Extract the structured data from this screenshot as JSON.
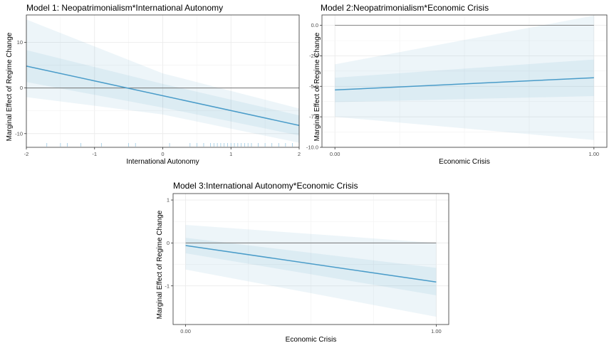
{
  "chart_data": [
    {
      "type": "line",
      "title": "Model 1: Neopatrimonialism*International Autonomy",
      "xlabel": "International Autonomy",
      "ylabel": "Marginal Effect of Regime Change",
      "xlim": [
        -2,
        2
      ],
      "ylim": [
        -13,
        16
      ],
      "x_ticks": [
        -2,
        -1,
        0,
        1,
        2
      ],
      "x_tick_labels": [
        "-2",
        "-1",
        "0",
        "1",
        "2"
      ],
      "y_ticks": [
        10,
        0,
        -10
      ],
      "y_tick_labels": [
        "10",
        "0",
        "-10"
      ],
      "grid": true,
      "reference_line": 0,
      "series": [
        {
          "x": [
            -2,
            0,
            2
          ],
          "y": [
            4.8,
            -1.7,
            -8.2
          ],
          "ci_inner_upper": [
            8.3,
            0.9,
            -6.0
          ],
          "ci_inner_lower": [
            1.3,
            -4.3,
            -10.4
          ],
          "ci_outer_upper": [
            15.0,
            3.2,
            -4.5
          ],
          "ci_outer_lower": [
            -2.0,
            -5.8,
            -12.0
          ]
        }
      ],
      "rug": [
        -1.7,
        -1.5,
        -1.4,
        -1.2,
        -0.9,
        -0.5,
        -0.4,
        0.1,
        0.4,
        0.5,
        0.6,
        0.7,
        0.75,
        0.8,
        0.85,
        0.9,
        0.95,
        1.0,
        1.05,
        1.1,
        1.15,
        1.2,
        1.25,
        1.3,
        1.4,
        1.5,
        1.6,
        1.7,
        1.8,
        1.9
      ],
      "color": "#4a9cc9"
    },
    {
      "type": "line",
      "title": "Model 2:Neopatrimonialism*Economic Crisis",
      "xlabel": "Economic Crisis",
      "ylabel": "Marginal Effect of Regime Change",
      "xlim": [
        -0.05,
        1.05
      ],
      "ylim": [
        -10,
        0.85
      ],
      "x_ticks": [
        0,
        1
      ],
      "x_tick_labels": [
        "0.00",
        "1.00"
      ],
      "y_ticks": [
        0,
        -2.5,
        -5,
        -7.5,
        -10
      ],
      "y_tick_labels": [
        "0.0",
        "-2.5",
        "-5.0",
        "-7.5",
        "-10.0"
      ],
      "grid": true,
      "reference_line": 0,
      "series": [
        {
          "x": [
            0,
            1
          ],
          "y": [
            -5.3,
            -4.3
          ],
          "ci_inner_upper": [
            -4.3,
            -2.8
          ],
          "ci_inner_lower": [
            -6.3,
            -5.8
          ],
          "ci_outer_upper": [
            -3.2,
            0.8
          ],
          "ci_outer_lower": [
            -7.5,
            -9.4
          ]
        }
      ],
      "color": "#4a9cc9"
    },
    {
      "type": "line",
      "title": "Model 3:International Autonomy*Economic Crisis",
      "xlabel": "Economic Crisis",
      "ylabel": "Marginal Effect of Regime Change",
      "xlim": [
        -0.05,
        1.05
      ],
      "ylim": [
        -1.9,
        1.15
      ],
      "x_ticks": [
        0,
        1
      ],
      "x_tick_labels": [
        "0.00",
        "1.00"
      ],
      "y_ticks": [
        1,
        0,
        -1
      ],
      "y_tick_labels": [
        "1",
        "0",
        "-1"
      ],
      "grid": true,
      "reference_line": 0,
      "series": [
        {
          "x": [
            0,
            1
          ],
          "y": [
            -0.06,
            -0.91
          ],
          "ci_inner_upper": [
            0.12,
            -0.58
          ],
          "ci_inner_lower": [
            -0.24,
            -1.22
          ],
          "ci_outer_upper": [
            0.42,
            0.0
          ],
          "ci_outer_lower": [
            -0.62,
            -1.72
          ]
        }
      ],
      "color": "#4a9cc9"
    }
  ]
}
